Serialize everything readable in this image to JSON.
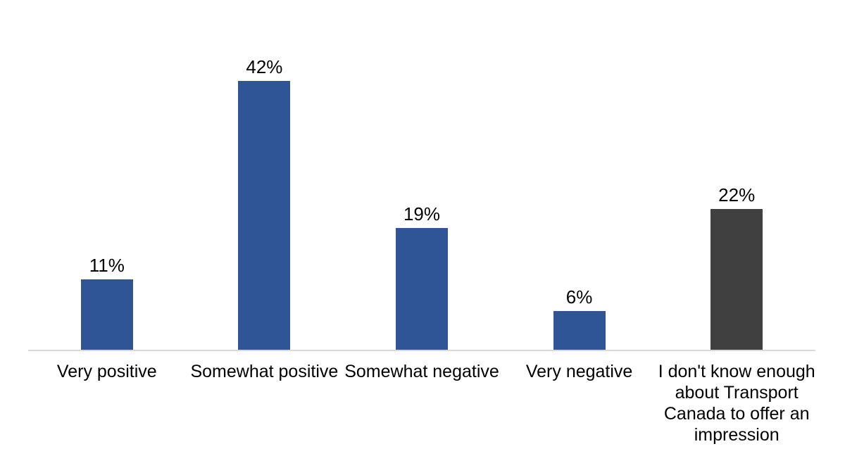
{
  "chart_data": {
    "type": "bar",
    "title": "",
    "xlabel": "",
    "ylabel": "",
    "categories": [
      "Very positive",
      "Somewhat positive",
      "Somewhat negative",
      "Very negative",
      "I don't know enough about Transport Canada to offer an impression"
    ],
    "category_display": [
      "Very positive",
      "Somewhat positive",
      "Somewhat negative",
      "Very negative",
      "I don't know enough\nabout Transport\nCanada to offer an\nimpression"
    ],
    "values": [
      11,
      42,
      19,
      6,
      22
    ],
    "value_labels": [
      "11%",
      "42%",
      "19%",
      "6%",
      "22%"
    ],
    "value_unit": "%",
    "ylim": [
      0,
      45
    ],
    "grid": false,
    "legend": false,
    "data_labels_position": "above-bars",
    "bar_colors": [
      "#2F5597",
      "#2F5597",
      "#2F5597",
      "#2F5597",
      "#404040"
    ],
    "axis_line_color": "#D9D9D9",
    "label_color": "#000000",
    "background_color": "#FFFFFF"
  }
}
